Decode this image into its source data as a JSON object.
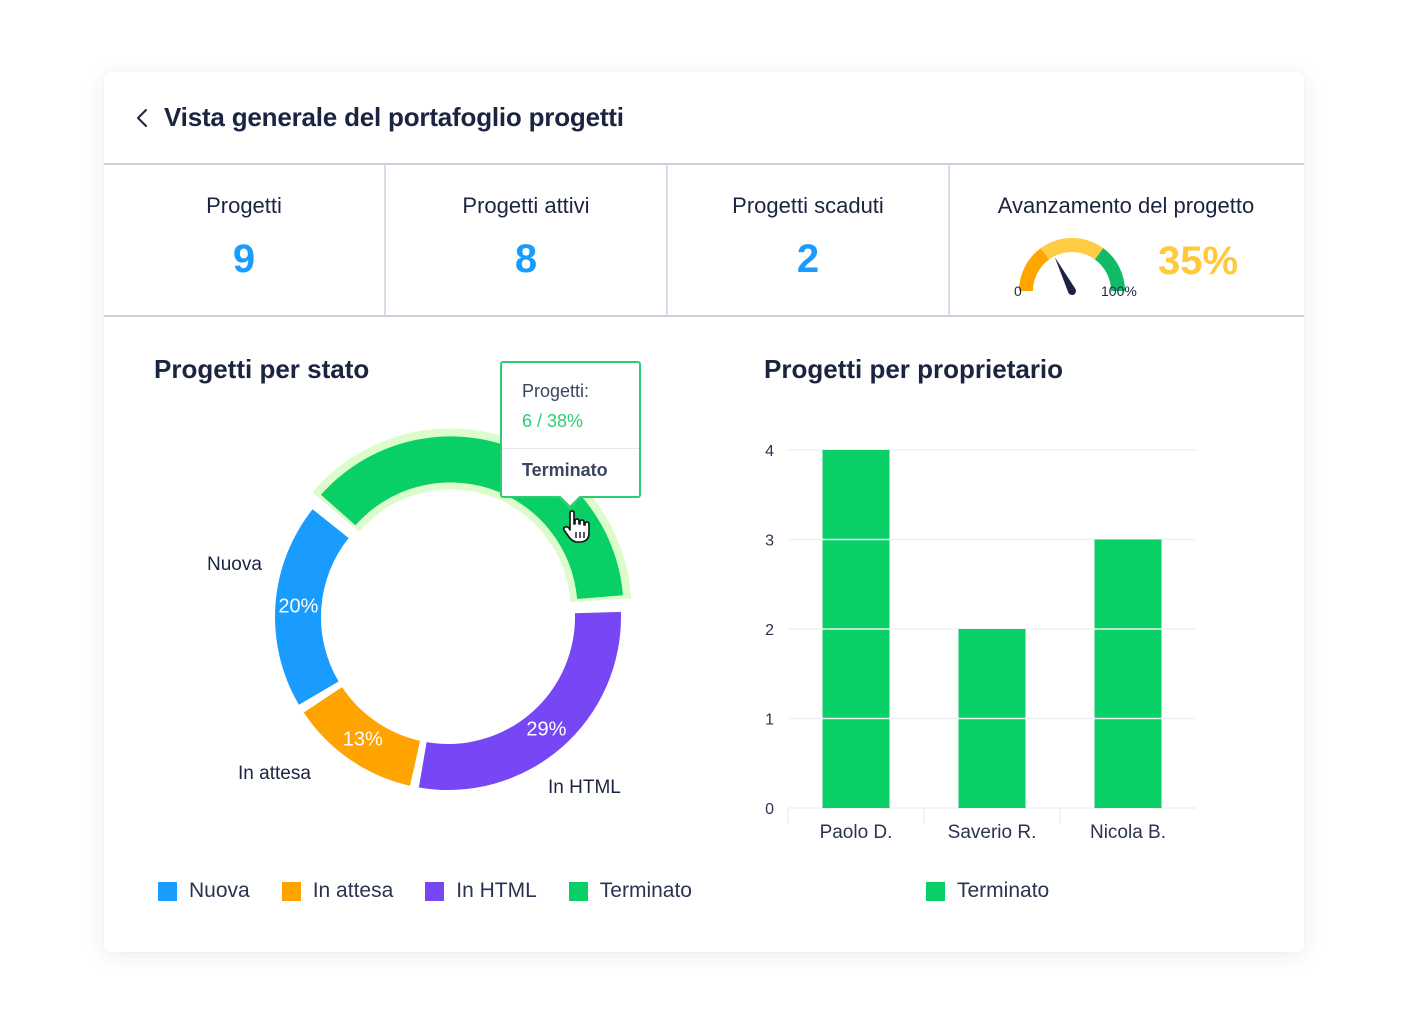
{
  "header": {
    "title": "Vista generale del portafoglio progetti",
    "back_icon": "chevron-left-icon"
  },
  "stats": [
    {
      "label": "Progetti",
      "value": "9"
    },
    {
      "label": "Progetti attivi",
      "value": "8"
    },
    {
      "label": "Progetti scaduti",
      "value": "2"
    }
  ],
  "progress": {
    "label": "Avanzamento del progetto",
    "value_text": "35%",
    "value": 35,
    "min_label": "0",
    "max_label": "100%",
    "gauge_colors": [
      "#ffa500",
      "#ffcc44",
      "#11bb66"
    ],
    "needle_color": "#1b2440",
    "value_color": "#ffc93c"
  },
  "chart_data": [
    {
      "type": "pie",
      "subtype": "donut",
      "title": "Progetti per stato",
      "categories": [
        "Terminato",
        "In HTML",
        "In attesa",
        "Nuova"
      ],
      "values": [
        38,
        29,
        13,
        20
      ],
      "value_labels": [
        "",
        "29%",
        "13%",
        "20%"
      ],
      "colors": [
        "#09cf67",
        "#7847f5",
        "#ffa300",
        "#1a9cff"
      ],
      "highlighted": "Terminato",
      "highlight_color": "#dcfccb",
      "outer_labels": [
        "",
        "In HTML",
        "In attesa",
        "Nuova"
      ],
      "legend": {
        "position": "bottom",
        "items": [
          {
            "label": "Nuova",
            "color": "#1a9cff"
          },
          {
            "label": "In attesa",
            "color": "#ffa300"
          },
          {
            "label": "In HTML",
            "color": "#7847f5"
          },
          {
            "label": "Terminato",
            "color": "#09cf67"
          }
        ]
      },
      "tooltip": {
        "label": "Progetti:",
        "value": "6 / 38%",
        "category": "Terminato"
      }
    },
    {
      "type": "bar",
      "title": "Progetti per proprietario",
      "categories": [
        "Paolo D.",
        "Saverio R.",
        "Nicola B."
      ],
      "series": [
        {
          "name": "Terminato",
          "values": [
            4,
            2,
            3
          ],
          "color": "#09cf67"
        }
      ],
      "xlabel": "",
      "ylabel": "",
      "ylim": [
        0,
        4
      ],
      "yticks": [
        0,
        1,
        2,
        3,
        4
      ],
      "grid": true,
      "legend": {
        "position": "bottom",
        "items": [
          {
            "label": "Terminato",
            "color": "#09cf67"
          }
        ]
      }
    }
  ]
}
